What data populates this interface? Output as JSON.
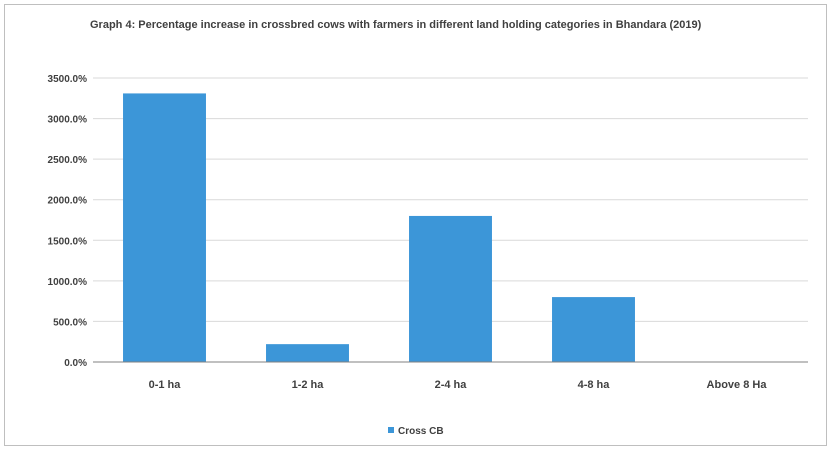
{
  "chart_data": {
    "type": "bar",
    "title": "Graph 4: Percentage increase in crossbred cows with farmers in different land holding categories in Bhandara (2019)",
    "categories": [
      "0-1 ha",
      "1-2 ha",
      "2-4 ha",
      "4-8 ha",
      "Above 8 Ha"
    ],
    "series": [
      {
        "name": "Cross CB",
        "values": [
          3310,
          220,
          1800,
          800,
          0
        ]
      }
    ],
    "ylim": [
      0,
      3500
    ],
    "yticks": [
      "0.0%",
      "500.0%",
      "1000.0%",
      "1500.0%",
      "2000.0%",
      "2500.0%",
      "3000.0%",
      "3500.0%"
    ],
    "grid": true,
    "legend": "bottom",
    "colors": {
      "bar": "#3c96d8",
      "grid": "#d9d9d9",
      "axis": "#808080"
    }
  }
}
